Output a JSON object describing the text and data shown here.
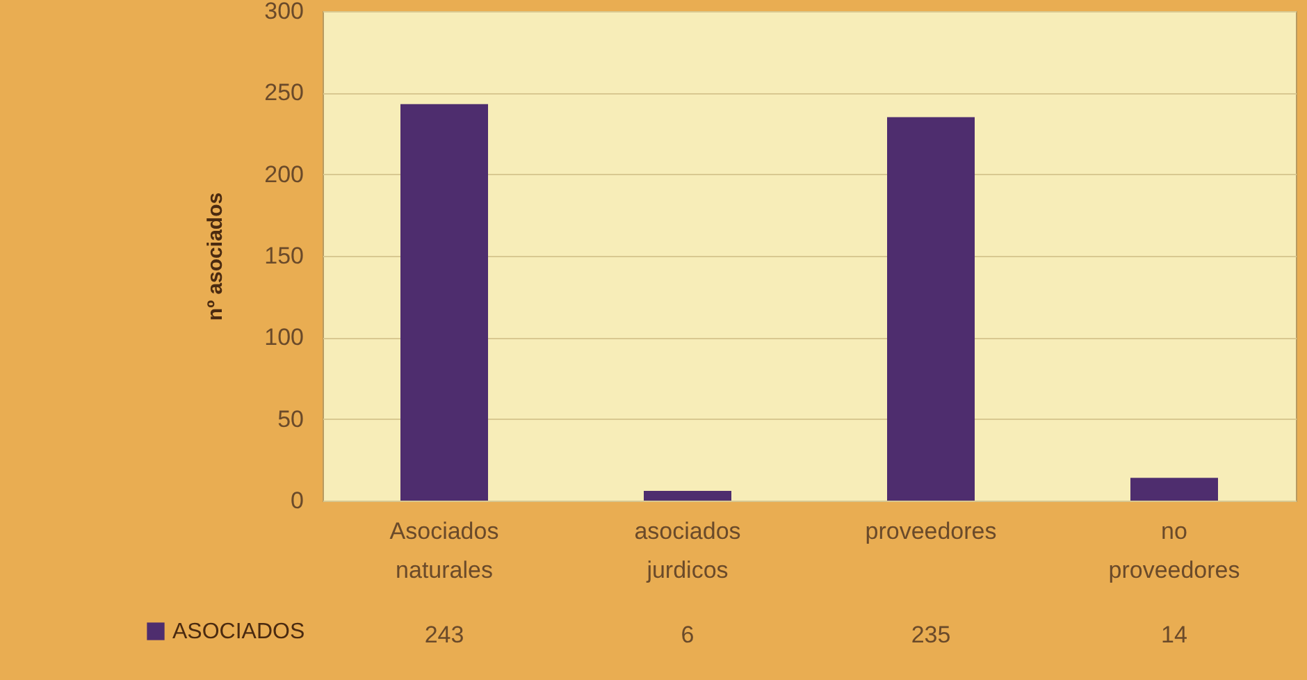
{
  "chart_data": {
    "type": "bar",
    "ylabel": "nº asociados",
    "categories": [
      "Asociados naturales",
      "asociados jurdicos",
      "proveedores",
      "no proveedores"
    ],
    "series": [
      {
        "name": "ASOCIADOS",
        "color": "#4e2d6e",
        "values": [
          243,
          6,
          235,
          14
        ]
      }
    ],
    "ylim": [
      0,
      300
    ],
    "yticks": [
      0,
      50,
      100,
      150,
      200,
      250,
      300
    ],
    "grid": "y",
    "legend": "bottom left",
    "data_labels": true
  }
}
